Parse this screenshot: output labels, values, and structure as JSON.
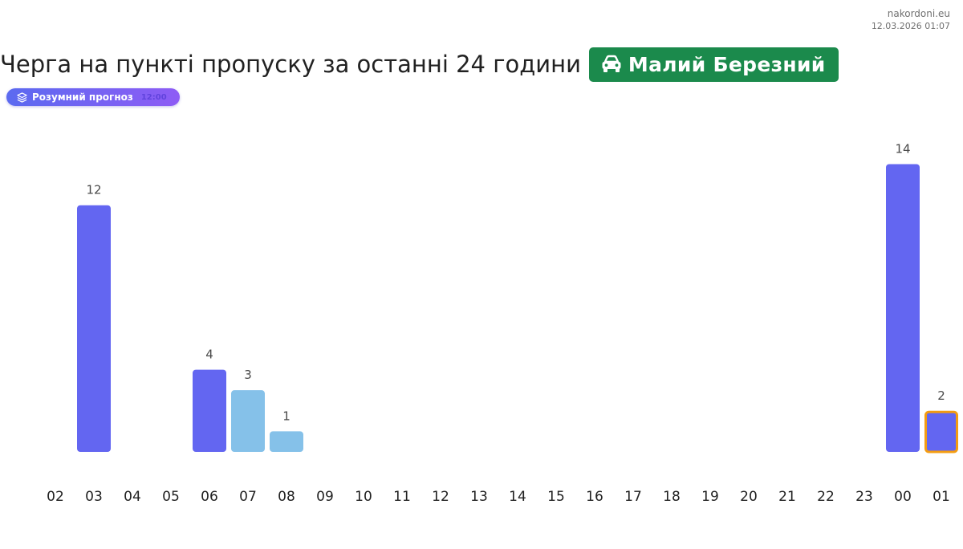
{
  "site": {
    "name": "nakordoni.eu",
    "timestamp": "12.03.2026 01:07"
  },
  "header": {
    "title": "Черга на пункті пропуску за останні 24 години",
    "checkpoint": "Малий Березний",
    "checkpoint_icon": "car-icon"
  },
  "forecast": {
    "label": "Розумний прогноз",
    "tag": "12:00"
  },
  "colors": {
    "actual": "#6366f1",
    "forecast": "#85c1e9",
    "current_outline": "#f39c12",
    "badge": "#1b8a4c"
  },
  "chart_data": {
    "type": "bar",
    "title": "",
    "xlabel": "",
    "ylabel": "",
    "categories": [
      "02",
      "03",
      "04",
      "05",
      "06",
      "07",
      "08",
      "09",
      "10",
      "11",
      "12",
      "13",
      "14",
      "15",
      "16",
      "17",
      "18",
      "19",
      "20",
      "21",
      "22",
      "23",
      "00",
      "01"
    ],
    "values": [
      0,
      12,
      0,
      0,
      4,
      3,
      1,
      0,
      0,
      0,
      0,
      0,
      0,
      0,
      0,
      0,
      0,
      0,
      0,
      0,
      0,
      0,
      14,
      2
    ],
    "kind": [
      "actual",
      "actual",
      "actual",
      "actual",
      "actual",
      "forecast",
      "forecast",
      "actual",
      "actual",
      "actual",
      "actual",
      "actual",
      "actual",
      "actual",
      "actual",
      "actual",
      "actual",
      "actual",
      "actual",
      "actual",
      "actual",
      "actual",
      "actual",
      "current"
    ],
    "ylim": [
      0,
      14
    ],
    "grid": false,
    "legend": "none"
  }
}
